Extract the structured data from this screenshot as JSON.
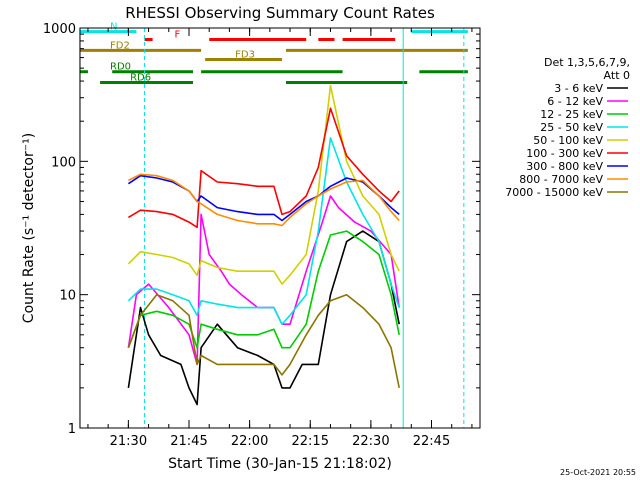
{
  "chart_data": {
    "type": "line",
    "title": "RHESSI Observing Summary Count Rates",
    "xlabel": "Start Time (30-Jan-15 21:18:02)",
    "ylabel": "Count Rate (s⁻¹ detector⁻¹)",
    "yscale": "log",
    "ylim": [
      1,
      1000
    ],
    "xlim": [
      "21:18:02",
      "22:57:00"
    ],
    "x_ticks": [
      "21:30",
      "21:45",
      "22:00",
      "22:15",
      "22:30",
      "22:45"
    ],
    "y_ticks": [
      "1",
      "10",
      "100",
      "1000"
    ],
    "grid": false,
    "legend_position": "right",
    "legend_header": [
      "Det 1,3,5,6,7,9,",
      "Att 0"
    ],
    "series": [
      {
        "name": "3 - 6 keV",
        "color": "#000000",
        "x": [
          "21:30",
          "21:32",
          "21:33",
          "21:35",
          "21:38",
          "21:43",
          "21:45",
          "21:47",
          "21:48",
          "21:52",
          "21:57",
          "22:02",
          "22:06",
          "22:08",
          "22:10",
          "22:13",
          "22:17",
          "22:20",
          "22:24",
          "22:28",
          "22:32",
          "22:35",
          "22:37"
        ],
        "y": [
          2,
          5,
          8,
          5,
          3.5,
          3,
          2,
          1.5,
          4,
          6,
          4,
          3.5,
          3,
          2,
          2,
          3,
          3,
          10,
          25,
          30,
          25,
          12,
          6
        ]
      },
      {
        "name": "6 - 12 keV",
        "color": "#ff00ff",
        "x": [
          "21:30",
          "21:32",
          "21:35",
          "21:40",
          "21:45",
          "21:47",
          "21:48",
          "21:50",
          "21:53",
          "21:55",
          "21:58",
          "22:02",
          "22:06",
          "22:08",
          "22:10",
          "22:14",
          "22:18",
          "22:20",
          "22:22",
          "22:26",
          "22:30",
          "22:35",
          "22:37"
        ],
        "y": [
          4,
          10,
          12,
          8,
          5,
          3,
          40,
          20,
          15,
          12,
          10,
          8,
          8,
          6,
          6,
          15,
          35,
          55,
          45,
          35,
          30,
          20,
          8
        ]
      },
      {
        "name": "12 - 25 keV",
        "color": "#00cc00",
        "x": [
          "21:30",
          "21:33",
          "21:37",
          "21:41",
          "21:45",
          "21:47",
          "21:48",
          "21:52",
          "21:57",
          "22:02",
          "22:06",
          "22:08",
          "22:10",
          "22:14",
          "22:17",
          "22:20",
          "22:24",
          "22:28",
          "22:32",
          "22:35",
          "22:37"
        ],
        "y": [
          4,
          7,
          7.5,
          7,
          6,
          4,
          6,
          5.5,
          5,
          5,
          5.5,
          4,
          4,
          6,
          15,
          28,
          30,
          25,
          20,
          10,
          5
        ]
      },
      {
        "name": "25 - 50 keV",
        "color": "#00e5e5",
        "x": [
          "21:30",
          "21:33",
          "21:37",
          "21:41",
          "21:45",
          "21:47",
          "21:48",
          "21:52",
          "21:57",
          "22:02",
          "22:06",
          "22:08",
          "22:10",
          "22:14",
          "22:17",
          "22:20",
          "22:24",
          "22:28",
          "22:32",
          "22:35",
          "22:37"
        ],
        "y": [
          9,
          11,
          11,
          10,
          9,
          7,
          9,
          8.5,
          8,
          8,
          8,
          6,
          7,
          10,
          30,
          150,
          70,
          40,
          25,
          12,
          8
        ]
      },
      {
        "name": "50 - 100 keV",
        "color": "#d0d000",
        "x": [
          "21:30",
          "21:33",
          "21:37",
          "21:41",
          "21:45",
          "21:47",
          "21:48",
          "21:52",
          "21:57",
          "22:02",
          "22:06",
          "22:08",
          "22:10",
          "22:14",
          "22:17",
          "22:20",
          "22:24",
          "22:28",
          "22:32",
          "22:35",
          "22:37"
        ],
        "y": [
          17,
          21,
          20,
          19,
          17,
          14,
          18,
          16,
          15,
          15,
          15,
          12,
          14,
          20,
          60,
          370,
          100,
          55,
          40,
          20,
          15
        ]
      },
      {
        "name": "100 - 300 keV",
        "color": "#ff0000",
        "x": [
          "21:30",
          "21:33",
          "21:37",
          "21:41",
          "21:45",
          "21:47",
          "21:48",
          "21:52",
          "21:57",
          "22:02",
          "22:06",
          "22:08",
          "22:10",
          "22:14",
          "22:17",
          "22:20",
          "22:24",
          "22:28",
          "22:32",
          "22:35",
          "22:37"
        ],
        "y": [
          38,
          43,
          42,
          40,
          35,
          32,
          85,
          70,
          68,
          65,
          65,
          40,
          42,
          55,
          90,
          250,
          110,
          80,
          60,
          50,
          60
        ]
      },
      {
        "name": "300 - 800 keV",
        "color": "#0000ff",
        "x": [
          "21:30",
          "21:33",
          "21:37",
          "21:41",
          "21:45",
          "21:47",
          "21:48",
          "21:52",
          "21:57",
          "22:02",
          "22:06",
          "22:08",
          "22:10",
          "22:14",
          "22:17",
          "22:20",
          "22:24",
          "22:28",
          "22:32",
          "22:35",
          "22:37"
        ],
        "y": [
          68,
          78,
          75,
          70,
          60,
          50,
          55,
          45,
          42,
          40,
          40,
          36,
          40,
          50,
          55,
          65,
          75,
          70,
          55,
          45,
          40
        ]
      },
      {
        "name": "800 - 7000 keV",
        "color": "#ff8c00",
        "x": [
          "21:30",
          "21:33",
          "21:37",
          "21:41",
          "21:45",
          "21:47",
          "21:48",
          "21:52",
          "21:57",
          "22:02",
          "22:06",
          "22:08",
          "22:10",
          "22:14",
          "22:17",
          "22:20",
          "22:24",
          "22:28",
          "22:32",
          "22:35",
          "22:37"
        ],
        "y": [
          72,
          80,
          78,
          72,
          60,
          50,
          48,
          40,
          36,
          34,
          34,
          33,
          38,
          48,
          55,
          62,
          70,
          72,
          55,
          42,
          36
        ]
      },
      {
        "name": "7000 - 15000 keV",
        "color": "#8b7500",
        "x": [
          "21:30",
          "21:33",
          "21:37",
          "21:41",
          "21:45",
          "21:47",
          "21:48",
          "21:52",
          "21:57",
          "22:02",
          "22:06",
          "22:08",
          "22:10",
          "22:14",
          "22:17",
          "22:20",
          "22:24",
          "22:28",
          "22:32",
          "22:35",
          "22:37"
        ],
        "y": [
          4,
          7,
          10,
          9,
          7,
          3,
          3.5,
          3,
          3,
          3,
          3,
          2.5,
          3,
          5,
          7,
          9,
          10,
          8,
          6,
          4,
          2
        ]
      }
    ],
    "flags": [
      {
        "label": "N",
        "color": "#00e5e5",
        "level": 940,
        "segments": [
          [
            "21:18",
            "21:32"
          ],
          [
            "22:40",
            "22:54"
          ]
        ]
      },
      {
        "label": "F",
        "color": "#ff0000",
        "level": 820,
        "segments": [
          [
            "21:34",
            "21:36"
          ],
          [
            "21:50",
            "22:14"
          ],
          [
            "22:17",
            "22:21"
          ],
          [
            "22:23",
            "22:36"
          ]
        ]
      },
      {
        "label": "FD2",
        "color": "#a08000",
        "level": 680,
        "segments": [
          [
            "21:18",
            "21:48"
          ],
          [
            "22:09",
            "22:54"
          ]
        ]
      },
      {
        "label": "FD3",
        "color": "#a08000",
        "level": 580,
        "segments": [
          [
            "21:49",
            "22:08"
          ]
        ]
      },
      {
        "label": "RD0",
        "color": "#008000",
        "level": 470,
        "segments": [
          [
            "21:18",
            "21:20"
          ],
          [
            "21:26",
            "21:46"
          ],
          [
            "21:48",
            "22:23"
          ],
          [
            "22:42",
            "22:54"
          ]
        ]
      },
      {
        "label": "RD6",
        "color": "#008000",
        "level": 390,
        "segments": [
          [
            "21:23",
            "21:46"
          ],
          [
            "22:09",
            "22:39"
          ]
        ]
      }
    ],
    "vlines": [
      {
        "time": "21:18",
        "color": "#00e5e5",
        "style": "solid"
      },
      {
        "time": "21:34",
        "color": "#00e5e5",
        "style": "dashed"
      },
      {
        "time": "22:38",
        "color": "#00e5e5",
        "style": "solid"
      },
      {
        "time": "22:53",
        "color": "#00e5e5",
        "style": "dashed"
      }
    ]
  },
  "footer": {
    "date_stamp": "25-Oct-2021 20:55"
  }
}
